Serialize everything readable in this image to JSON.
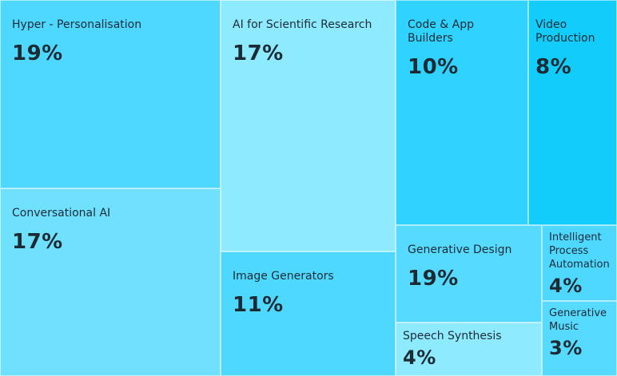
{
  "chart_data": {
    "type": "treemap",
    "title": "",
    "items": [
      {
        "label": "Hyper - Personalisation",
        "value": 19,
        "value_label": "19%",
        "color": "#4fd8ff"
      },
      {
        "label": "Conversational AI",
        "value": 17,
        "value_label": "17%",
        "color": "#70e0ff"
      },
      {
        "label": "AI for Scientific Research",
        "value": 17,
        "value_label": "17%",
        "color": "#8eebff"
      },
      {
        "label": "Image Generators",
        "value": 11,
        "value_label": "11%",
        "color": "#4fd8ff"
      },
      {
        "label": "Code & App Builders",
        "value": 10,
        "value_label": "10%",
        "color": "#30d3ff"
      },
      {
        "label": "Video Production",
        "value": 8,
        "value_label": "8%",
        "color": "#12cdfb"
      },
      {
        "label": "Generative Design",
        "value": 19,
        "value_label": "19%",
        "color": "#56daff"
      },
      {
        "label": "Speech Synthesis",
        "value": 4,
        "value_label": "4%",
        "color": "#8eebff"
      },
      {
        "label": "Intelligent Process Automation",
        "value": 4,
        "value_label": "4%",
        "color": "#4fd8ff"
      },
      {
        "label": "Generative Music",
        "value": 3,
        "value_label": "3%",
        "color": "#56daff"
      }
    ]
  }
}
